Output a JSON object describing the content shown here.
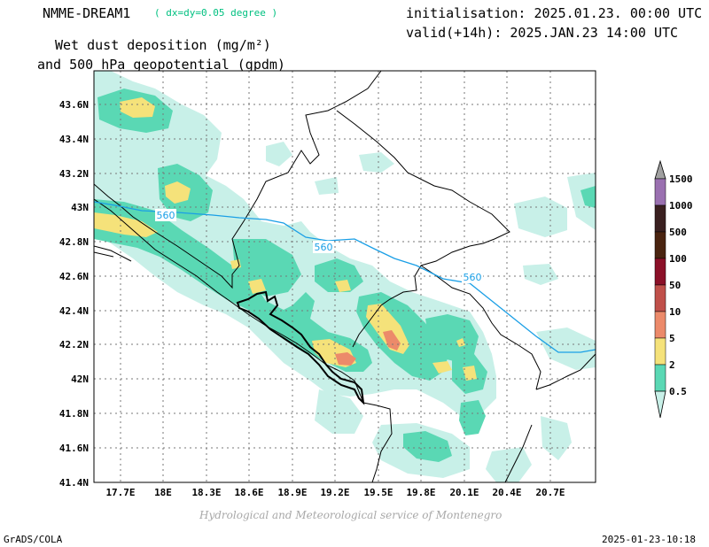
{
  "header": {
    "model_name": "NMME-DREAM1",
    "resolution": "( dx=dy=0.05 degree )",
    "product_line1": "Wet dust deposition (mg/m²)",
    "product_line2": "and 500 hPa geopotential (gpdm)",
    "initialisation": "initialisation: 2025.01.23. 00:00 UTC",
    "valid": "valid(+14h): 2025.JAN.23 14:00 UTC"
  },
  "map": {
    "x_ticks": [
      "17.7E",
      "18E",
      "18.3E",
      "18.6E",
      "18.9E",
      "19.2E",
      "19.5E",
      "19.8E",
      "20.1E",
      "20.4E",
      "20.7E"
    ],
    "y_ticks": [
      "43.6N",
      "43.4N",
      "43.2N",
      "43N",
      "42.8N",
      "42.6N",
      "42.4N",
      "42.2N",
      "42N",
      "41.8N",
      "41.6N",
      "41.4N"
    ],
    "geopotential_contour_value": "560",
    "geopotential_contour_color": "#1a9fe6",
    "grid": "dotted"
  },
  "legend": {
    "levels": [
      "0.5",
      "2",
      "5",
      "10",
      "50",
      "100",
      "500",
      "1000",
      "1500"
    ],
    "colors": [
      "#c8f0e8",
      "#5ad8b4",
      "#f5e27a",
      "#ec8a6a",
      "#c0504a",
      "#8b1028",
      "#4a2410",
      "#3a2020",
      "#9a70b0",
      "#a0a0a0"
    ]
  },
  "credit": "Hydrological and Meteorological service of Montenegro",
  "footer": {
    "left": "GrADS/COLA",
    "right": "2025-01-23-10:18"
  }
}
